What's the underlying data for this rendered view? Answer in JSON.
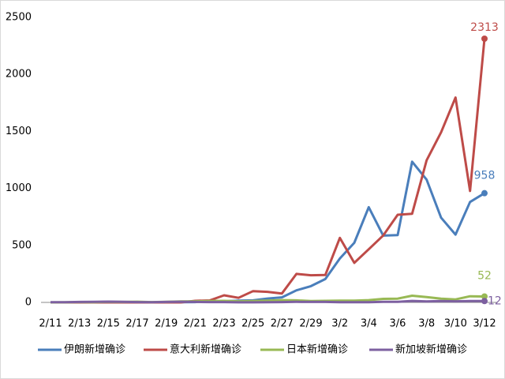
{
  "chart_data": {
    "type": "line",
    "categories": [
      "2/11",
      null,
      "2/13",
      null,
      "2/15",
      null,
      "2/17",
      null,
      "2/19",
      null,
      "2/21",
      null,
      "2/23",
      null,
      "2/25",
      null,
      "2/27",
      null,
      "2/29",
      null,
      "3/2",
      null,
      "3/4",
      null,
      "3/6",
      null,
      "3/8",
      null,
      "3/10",
      null,
      "3/12"
    ],
    "series": [
      {
        "name": "伊朗新增确诊",
        "color": "#4a7ebb",
        "values": [
          0,
          0,
          0,
          0,
          0,
          0,
          0,
          0,
          0,
          2,
          3,
          13,
          10,
          15,
          18,
          34,
          44,
          106,
          143,
          205,
          385,
          523,
          835,
          586,
          591,
          1234,
          1076,
          743,
          595,
          881,
          958
        ]
      },
      {
        "name": "意大利新增确诊",
        "color": "#be4b48",
        "values": [
          0,
          0,
          0,
          0,
          0,
          0,
          0,
          0,
          0,
          0,
          14,
          17,
          62,
          40,
          99,
          93,
          78,
          250,
          238,
          240,
          566,
          347,
          466,
          587,
          769,
          778,
          1247,
          1492,
          1797,
          977,
          2313
        ]
      },
      {
        "name": "日本新增确诊",
        "color": "#98b954",
        "values": [
          0,
          1,
          3,
          2,
          5,
          4,
          6,
          3,
          5,
          8,
          10,
          12,
          14,
          10,
          12,
          15,
          20,
          18,
          12,
          14,
          16,
          16,
          20,
          31,
          33,
          59,
          47,
          33,
          26,
          54,
          52
        ]
      },
      {
        "name": "新加坡新增确诊",
        "color": "#7d60a0",
        "values": [
          2,
          2,
          4,
          5,
          7,
          5,
          3,
          2,
          4,
          6,
          4,
          3,
          3,
          1,
          1,
          2,
          3,
          5,
          4,
          4,
          2,
          2,
          2,
          5,
          5,
          13,
          8,
          12,
          10,
          12,
          12
        ]
      }
    ],
    "ylim": [
      0,
      2500
    ],
    "yticks": [
      0,
      500,
      1000,
      1500,
      2000,
      2500
    ],
    "grid": false,
    "legend": "bottom"
  }
}
